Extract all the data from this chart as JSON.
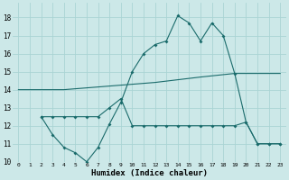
{
  "xlabel": "Humidex (Indice chaleur)",
  "background_color": "#cce8e8",
  "line_color": "#1a6b6b",
  "grid_color": "#aad4d4",
  "xlim": [
    -0.5,
    23.5
  ],
  "ylim": [
    10,
    18.8
  ],
  "yticks": [
    10,
    11,
    12,
    13,
    14,
    15,
    16,
    17,
    18
  ],
  "xticks": [
    0,
    1,
    2,
    3,
    4,
    5,
    6,
    7,
    8,
    9,
    10,
    11,
    12,
    13,
    14,
    15,
    16,
    17,
    18,
    19,
    20,
    21,
    22,
    23
  ],
  "series": [
    {
      "x": [
        0,
        4,
        8,
        12,
        16,
        19,
        20,
        21,
        22,
        23
      ],
      "y": [
        14.0,
        14.0,
        14.2,
        14.4,
        14.7,
        14.9,
        14.9,
        14.9,
        14.9,
        14.9
      ],
      "marker": false
    },
    {
      "x": [
        2,
        3,
        4,
        5,
        6,
        7,
        8,
        9,
        10,
        11,
        12,
        13,
        14,
        15,
        16,
        17,
        18,
        19,
        20,
        21,
        22,
        23
      ],
      "y": [
        12.5,
        12.5,
        12.5,
        12.5,
        12.5,
        12.5,
        13.0,
        13.5,
        12.0,
        12.0,
        12.0,
        12.0,
        12.0,
        12.0,
        12.0,
        12.0,
        12.0,
        12.0,
        12.2,
        11.0,
        11.0,
        11.0
      ],
      "marker": true
    },
    {
      "x": [
        2,
        3,
        4,
        5,
        6,
        7,
        8,
        9,
        10,
        11,
        12,
        13,
        14,
        15,
        16,
        17,
        18,
        19,
        20,
        21,
        22,
        23
      ],
      "y": [
        12.5,
        11.5,
        10.8,
        10.5,
        10.0,
        10.8,
        12.1,
        13.3,
        15.0,
        16.0,
        16.5,
        16.7,
        18.1,
        17.7,
        16.7,
        17.7,
        17.0,
        14.9,
        12.2,
        11.0,
        11.0,
        11.0
      ],
      "marker": true
    }
  ]
}
